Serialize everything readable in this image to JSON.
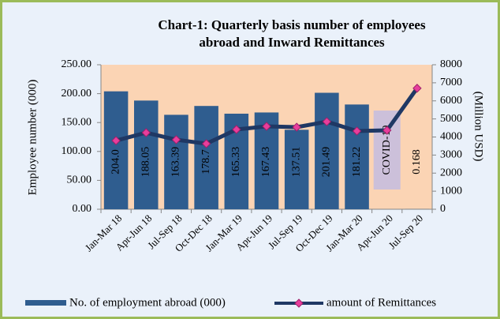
{
  "chart_data": {
    "type": "bar_line",
    "title": [
      "Chart-1: Quarterly basis number of employees",
      "abroad and Inward Remittances"
    ],
    "y_label": "Employee number  (000)",
    "y2_label": "(Million USD)",
    "categories": [
      "Jan-Mar 18",
      "Apr-Jun 18",
      "Jul-Sep 18",
      "Oct-Dec 18",
      "Jan-Mar 19",
      "Apr-Jun 19",
      "Jul-Sep 19",
      "Oct-Dec 19",
      "Jan-Mar 20",
      "Apr-Jun 20",
      "Jul-Sep 20"
    ],
    "series": [
      {
        "name": "No. of employment abroad (000)",
        "type": "bar",
        "color": "#2f5d8f",
        "values": [
          204.0,
          188.05,
          163.39,
          178.7,
          165.33,
          167.43,
          137.51,
          201.49,
          181.22,
          null,
          0.168
        ],
        "value_labels": [
          "204.0",
          "188.05",
          "163.39",
          "178.7",
          "165.33",
          "167.43",
          "137.51",
          "201.49",
          "181.22",
          null,
          "0.168"
        ]
      },
      {
        "name": "amount of Remittances",
        "type": "line",
        "axis": "y2",
        "color": "#1f3864",
        "marker_color": "#e83e9c",
        "values": [
          3800,
          4240,
          3850,
          3630,
          4415,
          4590,
          4545,
          4850,
          4330,
          4370,
          6700
        ]
      }
    ],
    "annotation": {
      "text": "COVID-19",
      "category": 9
    },
    "ylim": [
      0,
      250
    ],
    "yticks": [
      {
        "value": 0,
        "label": "0.00"
      },
      {
        "value": 50,
        "label": "50.00"
      },
      {
        "value": 100,
        "label": "100.00"
      },
      {
        "value": 150,
        "label": "150.00"
      },
      {
        "value": 200,
        "label": "200.00"
      },
      {
        "value": 250,
        "label": "250.00"
      }
    ],
    "y2lim": [
      0,
      8000
    ],
    "y2ticks": [
      0,
      1000,
      2000,
      3000,
      4000,
      5000,
      6000,
      7000,
      8000
    ]
  }
}
